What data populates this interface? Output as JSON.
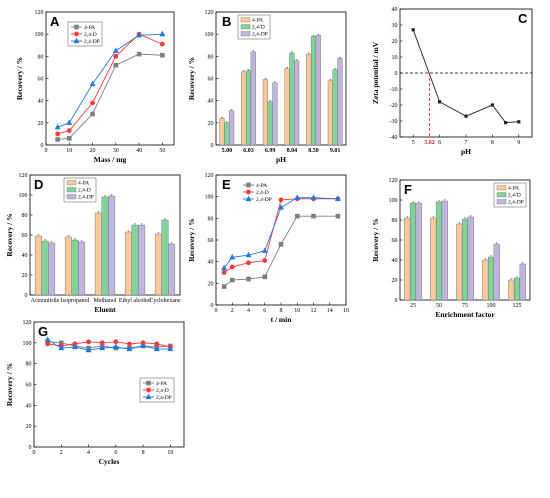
{
  "colors": {
    "pa": "#7f7f7f",
    "d": "#ff3b3b",
    "dp": "#1f7ae0",
    "bar_pa": "#f9c89b",
    "bar_d": "#7fd39b",
    "bar_dp": "#c3b4dd",
    "marker": "#d62020"
  },
  "chart_data": [
    {
      "panel": "A",
      "type": "line",
      "xlabel": "Mass / mg",
      "ylabel": "Recovery / %",
      "xlim": [
        0,
        55
      ],
      "ylim": [
        0,
        120
      ],
      "xticks": [
        0,
        10,
        20,
        30,
        40,
        50
      ],
      "yticks": [
        0,
        20,
        40,
        60,
        80,
        100,
        120
      ],
      "legend": "top-left",
      "series": [
        {
          "name": "4-PA",
          "x": [
            5,
            10,
            20,
            30,
            40,
            50
          ],
          "values": [
            5,
            6,
            28,
            72,
            82,
            81
          ],
          "marker": "square"
        },
        {
          "name": "2,4-D",
          "x": [
            5,
            10,
            20,
            30,
            40,
            50
          ],
          "values": [
            10,
            13,
            38,
            80,
            100,
            91
          ],
          "marker": "circle"
        },
        {
          "name": "2,4-DP",
          "x": [
            5,
            10,
            20,
            30,
            40,
            50
          ],
          "values": [
            16,
            20,
            55,
            85,
            99,
            100
          ],
          "marker": "triangle"
        }
      ]
    },
    {
      "panel": "B",
      "type": "bar",
      "xlabel": "pH",
      "ylabel": "Recovery / %",
      "ylim": [
        0,
        120
      ],
      "yticks": [
        0,
        20,
        40,
        60,
        80,
        100,
        120
      ],
      "legend": "top-left",
      "categories": [
        "5.00",
        "6.03",
        "6.99",
        "8.04",
        "8.50",
        "9.01"
      ],
      "series": [
        {
          "name": "4-PA",
          "values": [
            24,
            66,
            59,
            69,
            82,
            58
          ]
        },
        {
          "name": "2,4-D",
          "values": [
            20,
            67,
            39,
            83,
            98,
            68
          ]
        },
        {
          "name": "2,4-DP",
          "values": [
            31,
            84,
            56,
            76,
            99,
            78
          ]
        }
      ]
    },
    {
      "panel": "C",
      "type": "line",
      "xlabel": "pH",
      "ylabel": "Zeta potential / mV",
      "xlim": [
        4.5,
        9.5
      ],
      "ylim": [
        -40,
        40
      ],
      "xticks": [
        5,
        6,
        7,
        8,
        9
      ],
      "yticks": [
        -40,
        -30,
        -20,
        -10,
        0,
        10,
        20,
        30,
        40
      ],
      "annotation": "5.62",
      "series": [
        {
          "x": [
            5.0,
            6.0,
            7.0,
            8.0,
            8.5,
            9.0
          ],
          "values": [
            27,
            -18,
            -27,
            -20,
            -31,
            -30.5
          ]
        }
      ]
    },
    {
      "panel": "D",
      "type": "bar",
      "xlabel": "Eluent",
      "ylabel": "Recovery / %",
      "ylim": [
        0,
        120
      ],
      "yticks": [
        0,
        20,
        40,
        60,
        80,
        100,
        120
      ],
      "legend": "top-left",
      "categories": [
        "Acetonitrile",
        "Isopropanol",
        "Methanol",
        "Ethyl alcohol",
        "Cyclohexane"
      ],
      "series": [
        {
          "name": "4-PA",
          "values": [
            59,
            58,
            82,
            63,
            61
          ]
        },
        {
          "name": "2,4-D",
          "values": [
            54,
            55,
            98,
            70,
            75
          ]
        },
        {
          "name": "2,4-DP",
          "values": [
            52,
            53,
            99,
            70,
            51
          ]
        }
      ]
    },
    {
      "panel": "E",
      "type": "line",
      "xlabel": "t / min",
      "ylabel": "Recovery / %",
      "xlim": [
        0,
        16
      ],
      "ylim": [
        0,
        120
      ],
      "xticks": [
        0,
        2,
        4,
        6,
        8,
        10,
        12,
        14,
        16
      ],
      "yticks": [
        0,
        20,
        40,
        60,
        80,
        100,
        120
      ],
      "legend": "top-left",
      "series": [
        {
          "name": "4-PA",
          "x": [
            1,
            2,
            4,
            6,
            8,
            10,
            12,
            15
          ],
          "values": [
            17,
            23,
            24,
            26,
            56,
            82,
            82,
            82
          ],
          "marker": "square"
        },
        {
          "name": "2,4-D",
          "x": [
            1,
            2,
            4,
            6,
            8,
            10,
            12,
            15
          ],
          "values": [
            30,
            35,
            39,
            41,
            97,
            98,
            98,
            98
          ],
          "marker": "circle"
        },
        {
          "name": "2,4-DP",
          "x": [
            1,
            2,
            4,
            6,
            8,
            10,
            12,
            15
          ],
          "values": [
            34,
            44,
            46,
            50,
            90,
            99,
            99,
            98
          ],
          "marker": "triangle"
        }
      ]
    },
    {
      "panel": "F",
      "type": "bar",
      "xlabel": "Enrichment factor",
      "ylabel": "Recovery / %",
      "ylim": [
        0,
        120
      ],
      "yticks": [
        0,
        20,
        40,
        60,
        80,
        100,
        120
      ],
      "legend": "top-right",
      "categories": [
        "25",
        "50",
        "75",
        "100",
        "125"
      ],
      "series": [
        {
          "name": "4-PA",
          "values": [
            82,
            82,
            76,
            40,
            20
          ]
        },
        {
          "name": "2,4-D",
          "values": [
            97,
            98,
            81,
            43,
            22
          ]
        },
        {
          "name": "2,4-DP",
          "values": [
            97,
            99,
            83,
            56,
            36
          ]
        }
      ]
    },
    {
      "panel": "G",
      "type": "line",
      "xlabel": "Cycles",
      "ylabel": "Recovery / %",
      "xlim": [
        0,
        11
      ],
      "ylim": [
        0,
        120
      ],
      "xticks": [
        0,
        2,
        4,
        6,
        8,
        10
      ],
      "yticks": [
        0,
        20,
        40,
        60,
        80,
        100,
        120
      ],
      "legend": "center-right",
      "series": [
        {
          "name": "4-PA",
          "x": [
            1,
            2,
            3,
            4,
            5,
            6,
            7,
            8,
            9,
            10
          ],
          "values": [
            101,
            100,
            97,
            95,
            97,
            95,
            95,
            97,
            96,
            97
          ],
          "marker": "square"
        },
        {
          "name": "2,4-D",
          "x": [
            1,
            2,
            3,
            4,
            5,
            6,
            7,
            8,
            9,
            10
          ],
          "values": [
            99,
            97,
            99,
            101,
            100,
            101,
            99,
            100,
            99,
            96
          ],
          "marker": "circle"
        },
        {
          "name": "2,4-DP",
          "x": [
            1,
            2,
            3,
            4,
            5,
            6,
            7,
            8,
            9,
            10
          ],
          "values": [
            103,
            95,
            96,
            93,
            95,
            96,
            94,
            97,
            94,
            94
          ],
          "marker": "triangle"
        }
      ]
    }
  ]
}
